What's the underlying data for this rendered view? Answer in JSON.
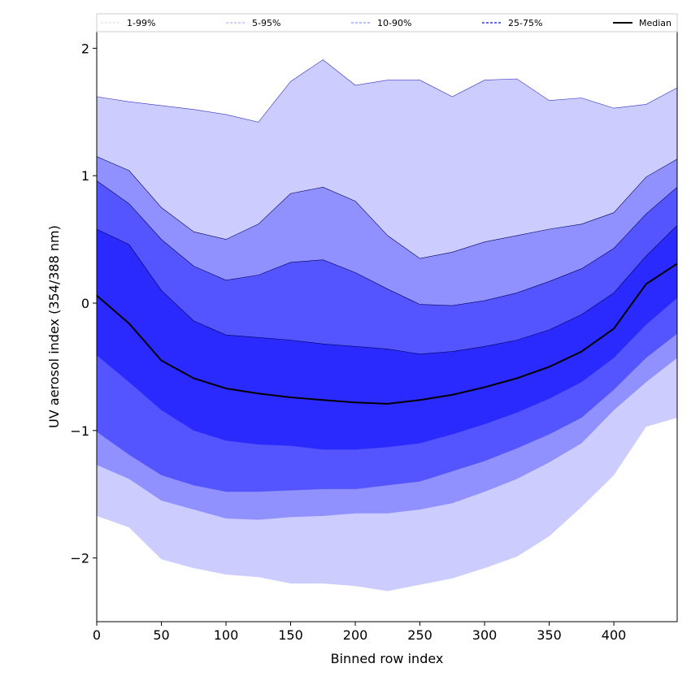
{
  "chart_data": {
    "type": "area",
    "title": "",
    "xlabel": "Binned row index",
    "ylabel": "UV aerosol index (354/388 nm)",
    "xlim": [
      0,
      449
    ],
    "ylim": [
      -2.5,
      2.13
    ],
    "xticks": [
      0,
      50,
      100,
      150,
      200,
      250,
      300,
      350,
      400
    ],
    "yticks": [
      -2,
      -1,
      0,
      1,
      2
    ],
    "ytick_labels": [
      "−2",
      "−1",
      "0",
      "1",
      "2"
    ],
    "grid": false,
    "legend_position": "top",
    "x": [
      0,
      25,
      50,
      75,
      100,
      125,
      150,
      175,
      200,
      225,
      250,
      275,
      300,
      325,
      350,
      375,
      400,
      425,
      449
    ],
    "bands": [
      {
        "name": "1-99%",
        "color": "#ccccff",
        "line": "#d8d8ff",
        "upper": [
          1.62,
          1.58,
          1.55,
          1.52,
          1.48,
          1.42,
          1.74,
          1.91,
          1.71,
          1.75,
          1.75,
          1.62,
          1.75,
          1.76,
          1.59,
          1.61,
          1.53,
          1.56,
          1.69
        ],
        "lower": [
          -1.67,
          -1.76,
          -2.01,
          -2.08,
          -2.13,
          -2.15,
          -2.2,
          -2.2,
          -2.22,
          -2.26,
          -2.21,
          -2.16,
          -2.08,
          -1.99,
          -1.83,
          -1.6,
          -1.35,
          -0.97,
          -0.9
        ]
      },
      {
        "name": "5-95%",
        "color": "#9090ff",
        "line": "#a0a0ff",
        "upper": [
          1.15,
          1.04,
          0.75,
          0.56,
          0.5,
          0.62,
          0.86,
          0.91,
          0.8,
          0.53,
          0.35,
          0.4,
          0.48,
          0.53,
          0.58,
          0.62,
          0.71,
          0.99,
          1.13
        ],
        "lower": [
          -1.27,
          -1.38,
          -1.55,
          -1.62,
          -1.69,
          -1.7,
          -1.68,
          -1.67,
          -1.65,
          -1.65,
          -1.62,
          -1.57,
          -1.48,
          -1.38,
          -1.25,
          -1.1,
          -0.84,
          -0.62,
          -0.43
        ]
      },
      {
        "name": "10-90%",
        "color": "#5555ff",
        "line": "#7777ff",
        "upper": [
          0.96,
          0.78,
          0.5,
          0.29,
          0.18,
          0.22,
          0.32,
          0.34,
          0.24,
          0.11,
          -0.01,
          -0.02,
          0.02,
          0.08,
          0.17,
          0.27,
          0.43,
          0.7,
          0.91
        ],
        "lower": [
          -1.01,
          -1.19,
          -1.35,
          -1.43,
          -1.48,
          -1.48,
          -1.47,
          -1.46,
          -1.46,
          -1.43,
          -1.4,
          -1.32,
          -1.24,
          -1.14,
          -1.03,
          -0.9,
          -0.68,
          -0.43,
          -0.24
        ]
      },
      {
        "name": "25-75%",
        "color": "#2a2aff",
        "line": "#6666ff",
        "upper": [
          0.58,
          0.46,
          0.1,
          -0.14,
          -0.25,
          -0.27,
          -0.29,
          -0.32,
          -0.34,
          -0.36,
          -0.4,
          -0.38,
          -0.34,
          -0.29,
          -0.21,
          -0.09,
          0.08,
          0.37,
          0.61
        ],
        "lower": [
          -0.41,
          -0.62,
          -0.84,
          -1.0,
          -1.08,
          -1.11,
          -1.12,
          -1.15,
          -1.15,
          -1.13,
          -1.1,
          -1.03,
          -0.95,
          -0.86,
          -0.75,
          -0.62,
          -0.43,
          -0.17,
          0.04
        ]
      }
    ],
    "median": {
      "name": "Median",
      "color": "#000000",
      "values": [
        0.06,
        -0.16,
        -0.45,
        -0.59,
        -0.67,
        -0.71,
        -0.74,
        -0.76,
        -0.78,
        -0.79,
        -0.76,
        -0.72,
        -0.66,
        -0.59,
        -0.5,
        -0.38,
        -0.2,
        0.15,
        0.31
      ]
    }
  }
}
